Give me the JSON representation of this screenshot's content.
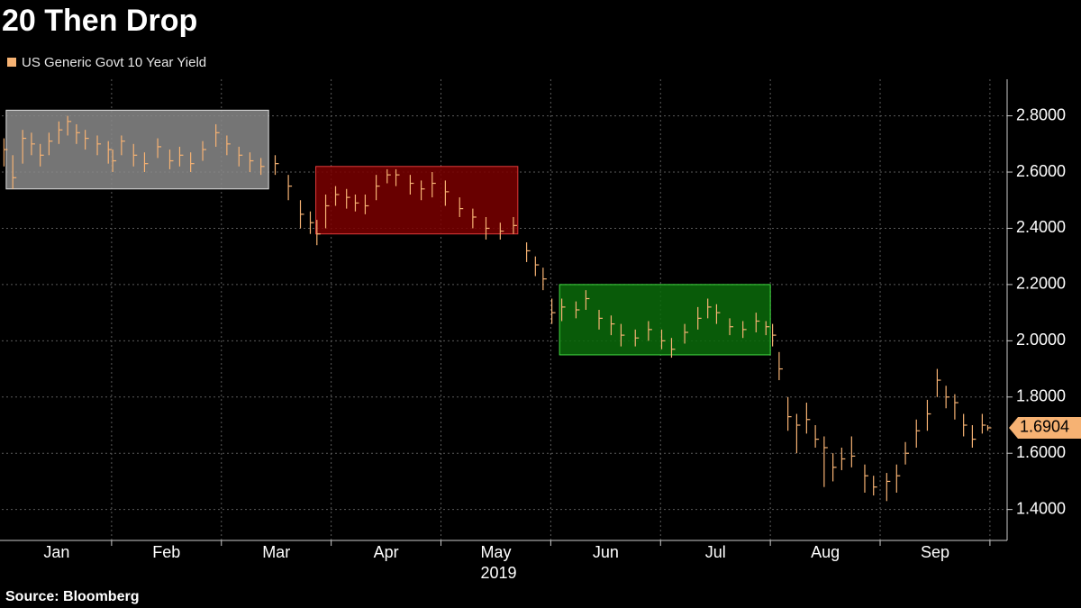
{
  "chart_data": {
    "type": "range-bar",
    "title": "20 Then Drop",
    "source": "Source: Bloomberg",
    "xlabel": "2019",
    "xlim": [
      1,
      10.05
    ],
    "xticks": [
      {
        "value": 1.5,
        "label": "Jan"
      },
      {
        "value": 2.5,
        "label": "Feb"
      },
      {
        "value": 3.5,
        "label": "Mar"
      },
      {
        "value": 4.5,
        "label": "Apr"
      },
      {
        "value": 5.5,
        "label": "May"
      },
      {
        "value": 6.5,
        "label": "Jun"
      },
      {
        "value": 7.5,
        "label": "Jul"
      },
      {
        "value": 8.5,
        "label": "Aug"
      },
      {
        "value": 9.5,
        "label": "Sep"
      }
    ],
    "ylim": [
      1.29,
      2.93
    ],
    "yticks": [
      {
        "value": 1.4,
        "label": "1.4000"
      },
      {
        "value": 1.6,
        "label": "1.6000"
      },
      {
        "value": 1.8,
        "label": "1.8000"
      },
      {
        "value": 2.0,
        "label": "2.0000"
      },
      {
        "value": 2.2,
        "label": "2.2000"
      },
      {
        "value": 2.4,
        "label": "2.4000"
      },
      {
        "value": 2.6,
        "label": "2.6000"
      },
      {
        "value": 2.8,
        "label": "2.8000"
      }
    ],
    "grid": true,
    "highlights": [
      {
        "x": [
          1.04,
          3.43
        ],
        "y": [
          2.54,
          2.82
        ],
        "color": "#8a8a8a",
        "edge": "#e0e0e0"
      },
      {
        "x": [
          3.86,
          5.7
        ],
        "y": [
          2.38,
          2.62
        ],
        "color": "#7a0000",
        "edge": "#e03a3a"
      },
      {
        "x": [
          6.08,
          8.0
        ],
        "y": [
          1.95,
          2.2
        ],
        "color": "#0b6b0b",
        "edge": "#44dd44"
      }
    ],
    "series": [
      {
        "name": "US Generic Govt 10 Year Yield",
        "color": "#f6b273",
        "x": [
          1.02,
          1.1,
          1.19,
          1.27,
          1.35,
          1.43,
          1.52,
          1.6,
          1.68,
          1.76,
          1.87,
          1.97,
          2.01,
          2.09,
          2.2,
          2.3,
          2.42,
          2.53,
          2.62,
          2.72,
          2.83,
          2.95,
          3.05,
          3.16,
          3.26,
          3.36,
          3.49,
          3.61,
          3.72,
          3.81,
          3.87,
          3.95,
          4.04,
          4.14,
          4.22,
          4.31,
          4.41,
          4.51,
          4.59,
          4.72,
          4.82,
          4.92,
          5.04,
          5.17,
          5.29,
          5.41,
          5.54,
          5.66,
          5.78,
          5.86,
          5.93,
          6.01,
          6.1,
          6.23,
          6.32,
          6.44,
          6.55,
          6.64,
          6.77,
          6.89,
          7.01,
          7.1,
          7.22,
          7.34,
          7.43,
          7.51,
          7.63,
          7.75,
          7.87,
          7.96,
          8.02,
          8.08,
          8.16,
          8.24,
          8.33,
          8.41,
          8.49,
          8.57,
          8.65,
          8.74,
          8.86,
          8.94,
          9.06,
          9.15,
          9.23,
          9.33,
          9.43,
          9.52,
          9.6,
          9.68,
          9.76,
          9.84,
          9.93,
          9.98
        ],
        "high": [
          2.72,
          2.66,
          2.75,
          2.74,
          2.7,
          2.74,
          2.78,
          2.8,
          2.77,
          2.75,
          2.73,
          2.71,
          2.68,
          2.73,
          2.7,
          2.67,
          2.72,
          2.68,
          2.69,
          2.67,
          2.71,
          2.77,
          2.73,
          2.69,
          2.67,
          2.65,
          2.66,
          2.59,
          2.5,
          2.46,
          2.43,
          2.52,
          2.55,
          2.54,
          2.52,
          2.52,
          2.59,
          2.61,
          2.61,
          2.59,
          2.57,
          2.6,
          2.57,
          2.51,
          2.47,
          2.44,
          2.42,
          2.44,
          2.35,
          2.3,
          2.26,
          2.15,
          2.15,
          2.14,
          2.18,
          2.11,
          2.09,
          2.06,
          2.04,
          2.07,
          2.04,
          2.01,
          2.06,
          2.12,
          2.15,
          2.13,
          2.08,
          2.07,
          2.1,
          2.07,
          2.06,
          1.96,
          1.8,
          1.74,
          1.78,
          1.7,
          1.66,
          1.6,
          1.62,
          1.66,
          1.56,
          1.52,
          1.53,
          1.56,
          1.64,
          1.72,
          1.79,
          1.9,
          1.84,
          1.81,
          1.74,
          1.7,
          1.74,
          1.7
        ],
        "low": [
          2.62,
          2.54,
          2.63,
          2.66,
          2.62,
          2.66,
          2.7,
          2.73,
          2.7,
          2.68,
          2.66,
          2.63,
          2.6,
          2.66,
          2.62,
          2.6,
          2.65,
          2.61,
          2.62,
          2.6,
          2.64,
          2.69,
          2.66,
          2.62,
          2.6,
          2.59,
          2.59,
          2.5,
          2.4,
          2.38,
          2.34,
          2.4,
          2.48,
          2.47,
          2.46,
          2.45,
          2.5,
          2.56,
          2.55,
          2.52,
          2.5,
          2.51,
          2.48,
          2.44,
          2.4,
          2.36,
          2.36,
          2.38,
          2.28,
          2.23,
          2.18,
          2.06,
          2.07,
          2.08,
          2.11,
          2.04,
          2.02,
          1.98,
          1.98,
          2.0,
          1.97,
          1.94,
          1.99,
          2.04,
          2.08,
          2.06,
          2.02,
          2.01,
          2.03,
          2.02,
          1.98,
          1.86,
          1.68,
          1.6,
          1.67,
          1.62,
          1.48,
          1.5,
          1.54,
          1.55,
          1.46,
          1.45,
          1.43,
          1.46,
          1.56,
          1.62,
          1.68,
          1.8,
          1.76,
          1.72,
          1.66,
          1.62,
          1.67,
          1.68
        ],
        "close": [
          2.68,
          2.58,
          2.72,
          2.7,
          2.66,
          2.71,
          2.75,
          2.78,
          2.74,
          2.72,
          2.7,
          2.68,
          2.64,
          2.71,
          2.66,
          2.63,
          2.69,
          2.64,
          2.66,
          2.63,
          2.68,
          2.74,
          2.7,
          2.66,
          2.64,
          2.62,
          2.63,
          2.55,
          2.45,
          2.42,
          2.38,
          2.48,
          2.52,
          2.51,
          2.49,
          2.48,
          2.55,
          2.59,
          2.59,
          2.56,
          2.54,
          2.56,
          2.53,
          2.47,
          2.44,
          2.4,
          2.39,
          2.41,
          2.32,
          2.27,
          2.22,
          2.1,
          2.12,
          2.11,
          2.15,
          2.08,
          2.06,
          2.02,
          2.01,
          2.04,
          2.0,
          1.97,
          2.03,
          2.08,
          2.12,
          2.1,
          2.05,
          2.04,
          2.07,
          2.05,
          2.02,
          1.9,
          1.73,
          1.7,
          1.72,
          1.65,
          1.62,
          1.55,
          1.58,
          1.59,
          1.52,
          1.48,
          1.5,
          1.52,
          1.6,
          1.68,
          1.74,
          1.86,
          1.8,
          1.78,
          1.7,
          1.65,
          1.7,
          1.6904
        ]
      }
    ]
  }
}
